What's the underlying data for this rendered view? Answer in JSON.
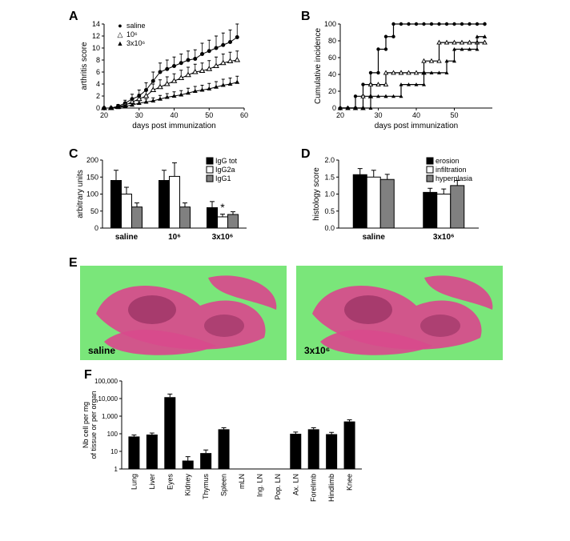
{
  "panelA": {
    "label": "A",
    "xlabel": "days post immunization",
    "ylabel": "arthritis score",
    "xlim": [
      20,
      60
    ],
    "ylim": [
      0,
      14
    ],
    "xticks": [
      20,
      30,
      40,
      50,
      60
    ],
    "yticks": [
      0,
      2,
      4,
      6,
      8,
      10,
      12,
      14
    ],
    "legend": [
      "saline",
      "10⁶",
      "3x10⁶"
    ],
    "series": {
      "saline": {
        "marker": "circle-filled",
        "color": "#000000",
        "x": [
          20,
          22,
          24,
          26,
          28,
          30,
          32,
          34,
          36,
          38,
          40,
          42,
          44,
          46,
          48,
          50,
          52,
          54,
          56,
          58
        ],
        "y": [
          0,
          0,
          0.3,
          0.8,
          1.5,
          2,
          3,
          4.5,
          6,
          6.5,
          7,
          7.5,
          8,
          8.2,
          9,
          9.5,
          10,
          10.5,
          11,
          11.8
        ],
        "err": [
          0,
          0,
          0.3,
          0.5,
          0.8,
          1,
          1.2,
          1.5,
          1.5,
          1.5,
          1.5,
          1.5,
          1.5,
          1.5,
          1.8,
          1.8,
          2,
          2,
          2,
          2.2
        ]
      },
      "10_6": {
        "marker": "triangle-open",
        "color": "#000000",
        "x": [
          20,
          22,
          24,
          26,
          28,
          30,
          32,
          34,
          36,
          38,
          40,
          42,
          44,
          46,
          48,
          50,
          52,
          54,
          56,
          58
        ],
        "y": [
          0,
          0,
          0.2,
          0.5,
          1,
          1.5,
          2,
          3,
          3.5,
          4,
          4.5,
          5,
          5.5,
          6,
          6.2,
          6.5,
          7,
          7.5,
          7.8,
          8
        ],
        "err": [
          0,
          0,
          0.2,
          0.3,
          0.5,
          0.8,
          1,
          1,
          1.2,
          1.2,
          1.2,
          1.3,
          1.3,
          1.3,
          1.3,
          1.4,
          1.5,
          1.5,
          1.5,
          1.5
        ]
      },
      "3x10_6": {
        "marker": "triangle-filled",
        "color": "#000000",
        "x": [
          20,
          22,
          24,
          26,
          28,
          30,
          32,
          34,
          36,
          38,
          40,
          42,
          44,
          46,
          48,
          50,
          52,
          54,
          56,
          58
        ],
        "y": [
          0,
          0,
          0.1,
          0.3,
          0.5,
          0.8,
          1,
          1.2,
          1.5,
          1.8,
          2,
          2.2,
          2.5,
          2.8,
          3,
          3.2,
          3.5,
          3.8,
          4,
          4.3
        ],
        "err": [
          0,
          0,
          0.1,
          0.2,
          0.3,
          0.4,
          0.5,
          0.5,
          0.6,
          0.6,
          0.7,
          0.7,
          0.8,
          0.8,
          0.8,
          0.9,
          0.9,
          1,
          1,
          1
        ]
      }
    }
  },
  "panelB": {
    "label": "B",
    "xlabel": "days post immunization",
    "ylabel": "Cumulative incidence",
    "xlim": [
      20,
      60
    ],
    "ylim": [
      0,
      100
    ],
    "xticks": [
      20,
      30,
      40,
      50
    ],
    "yticks": [
      0,
      20,
      40,
      60,
      80,
      100
    ],
    "series": {
      "saline": {
        "marker": "circle-filled",
        "color": "#000000",
        "steps": [
          [
            20,
            0
          ],
          [
            24,
            14
          ],
          [
            26,
            28
          ],
          [
            28,
            42
          ],
          [
            30,
            70
          ],
          [
            32,
            85
          ],
          [
            34,
            100
          ],
          [
            58,
            100
          ]
        ]
      },
      "10_6": {
        "marker": "triangle-open",
        "color": "#000000",
        "steps": [
          [
            20,
            0
          ],
          [
            26,
            14
          ],
          [
            28,
            28
          ],
          [
            32,
            42
          ],
          [
            36,
            42
          ],
          [
            42,
            56
          ],
          [
            46,
            78
          ],
          [
            58,
            78
          ]
        ]
      },
      "3x10_6": {
        "marker": "triangle-filled",
        "color": "#000000",
        "steps": [
          [
            20,
            0
          ],
          [
            28,
            14
          ],
          [
            32,
            14
          ],
          [
            36,
            28
          ],
          [
            42,
            42
          ],
          [
            48,
            56
          ],
          [
            50,
            70
          ],
          [
            56,
            85
          ],
          [
            58,
            85
          ]
        ]
      }
    }
  },
  "panelC": {
    "label": "C",
    "xlabel_categories": [
      "saline",
      "10⁶",
      "3x10⁶"
    ],
    "ylabel": "arbitrary units",
    "ylim": [
      0,
      200
    ],
    "yticks": [
      0,
      50,
      100,
      150,
      200
    ],
    "legend": [
      "IgG tot",
      "IgG2a",
      "IgG1"
    ],
    "colors": [
      "#000000",
      "#ffffff",
      "#808080"
    ],
    "groups": {
      "saline": [
        140,
        100,
        62
      ],
      "10_6": [
        140,
        152,
        62
      ],
      "3x10_6": [
        60,
        33,
        40
      ]
    },
    "errors": {
      "saline": [
        30,
        20,
        12
      ],
      "10_6": [
        30,
        40,
        12
      ],
      "3x10_6": [
        18,
        8,
        8
      ]
    },
    "sig_marker": "*"
  },
  "panelD": {
    "label": "D",
    "xlabel_categories": [
      "saline",
      "3x10⁶"
    ],
    "ylabel": "histology score",
    "ylim": [
      0,
      2.0
    ],
    "yticks": [
      0,
      0.5,
      1.0,
      1.5,
      2.0
    ],
    "legend": [
      "erosion",
      "infiltration",
      "hyperplasia"
    ],
    "colors": [
      "#000000",
      "#ffffff",
      "#808080"
    ],
    "groups": {
      "saline": [
        1.57,
        1.5,
        1.43
      ],
      "3x10_6": [
        1.05,
        1.0,
        1.25
      ]
    },
    "errors": {
      "saline": [
        0.18,
        0.2,
        0.15
      ],
      "3x10_6": [
        0.12,
        0.15,
        0.15
      ]
    }
  },
  "panelE": {
    "label": "E",
    "image_labels": [
      "saline",
      "3x10⁶"
    ],
    "bg_color": "#7ae67a",
    "tissue_color": "#d84a8c"
  },
  "panelF": {
    "label": "F",
    "ylabel": "Nb cell per mg\nof tissue or per organ",
    "ylim": [
      1,
      100000
    ],
    "yticks": [
      1,
      10,
      100,
      1000,
      10000,
      100000
    ],
    "ytick_labels": [
      "1",
      "10",
      "100",
      "1,000",
      "10,000",
      "100,000"
    ],
    "categories": [
      "Lung",
      "Liver",
      "Eyes",
      "Kidney",
      "Thymus",
      "Spleen",
      "mLN",
      "Ing. LN",
      "Pop. LN",
      "Ax. LN",
      "Forelimb",
      "Hindlimb",
      "Knee"
    ],
    "values": [
      70,
      90,
      12000,
      3,
      8,
      180,
      1,
      1,
      1,
      100,
      180,
      95,
      500
    ],
    "errors": [
      15,
      20,
      6000,
      2,
      4,
      40,
      0,
      0,
      0,
      25,
      40,
      25,
      120
    ],
    "bar_color": "#000000"
  }
}
